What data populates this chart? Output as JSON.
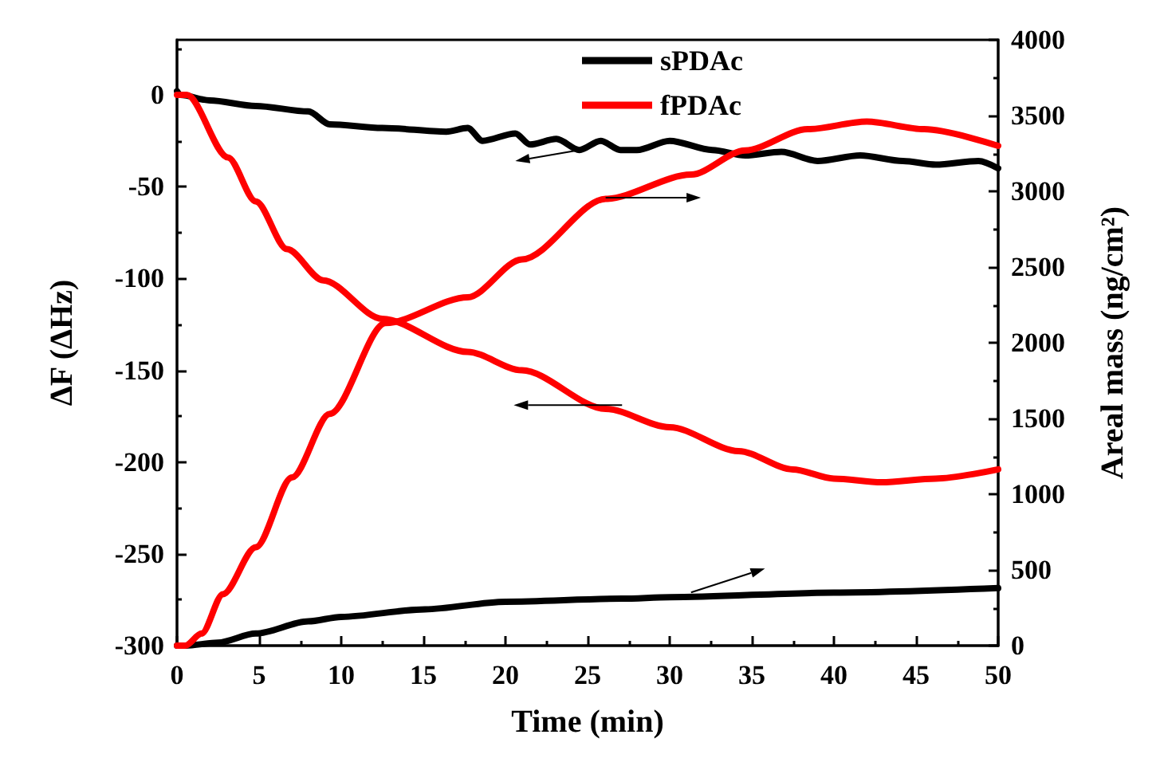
{
  "chart_data": {
    "type": "line",
    "xlabel": "Time (min)",
    "ylabel": "ΔF (ΔHz)",
    "y2label": "Areal mass (ng/cm²)",
    "xlim": [
      0,
      50
    ],
    "xticks": [
      0,
      5,
      10,
      15,
      20,
      25,
      30,
      35,
      40,
      45,
      50
    ],
    "ylim": [
      -300,
      30
    ],
    "yticks": [
      -300,
      -250,
      -200,
      -150,
      -100,
      -50,
      0
    ],
    "y2lim": [
      0,
      4000
    ],
    "y2ticks": [
      0,
      500,
      1000,
      1500,
      2000,
      2500,
      3000,
      3500,
      4000
    ],
    "legend": "top",
    "grid": false,
    "marker": "none",
    "line_style": "solid",
    "series": [
      {
        "name": "sPDAc",
        "color": "#000000",
        "x": [
          0,
          0.2,
          2,
          4.8,
          8,
          9.3,
          12.5,
          16.4,
          17.7,
          18.6,
          20.6,
          21.5,
          23.1,
          24.5,
          25.8,
          27,
          28,
          30,
          32.6,
          34.6,
          36.8,
          39,
          41.6,
          44.2,
          46.2,
          48.8,
          50
        ],
        "values": [
          2,
          0,
          -3,
          -6,
          -9,
          -16,
          -18,
          -20,
          -18,
          -25,
          -21,
          -27,
          -24,
          -30,
          -25,
          -30,
          -30,
          -25,
          -30,
          -33,
          -31,
          -36,
          -33,
          -36,
          -38,
          -36,
          -40
        ]
      },
      {
        "name": "fPDAc",
        "color": "#ff0000",
        "x": [
          0,
          0.6,
          3.1,
          4.8,
          6.7,
          8.9,
          12.5,
          17.7,
          21,
          26.1,
          30,
          34.2,
          37.5,
          40,
          42.9,
          46.2,
          50
        ],
        "values": [
          0,
          0,
          -34,
          -58,
          -84,
          -101,
          -122,
          -140,
          -150,
          -171,
          -181,
          -194,
          -204,
          -209,
          -211,
          -209,
          -204
        ]
      },
      {
        "axis": "y2",
        "color": "#000000",
        "x": [
          0,
          0.5,
          2.5,
          4.8,
          8,
          10,
          15.1,
          20,
          27.1,
          30,
          40,
          50
        ],
        "values": [
          0,
          0,
          20,
          80,
          160,
          190,
          240,
          290,
          310,
          320,
          350,
          380
        ]
      },
      {
        "axis": "y2",
        "color": "#ff0000",
        "x": [
          0,
          0.5,
          1.5,
          2.8,
          4.8,
          7,
          9.3,
          12.7,
          17.7,
          21,
          26.1,
          31.3,
          34.6,
          38.4,
          42,
          45.5,
          50
        ],
        "values": [
          0,
          0,
          80,
          340,
          650,
          1110,
          1530,
          2130,
          2300,
          2550,
          2950,
          3110,
          3270,
          3410,
          3460,
          3410,
          3300
        ]
      }
    ]
  }
}
